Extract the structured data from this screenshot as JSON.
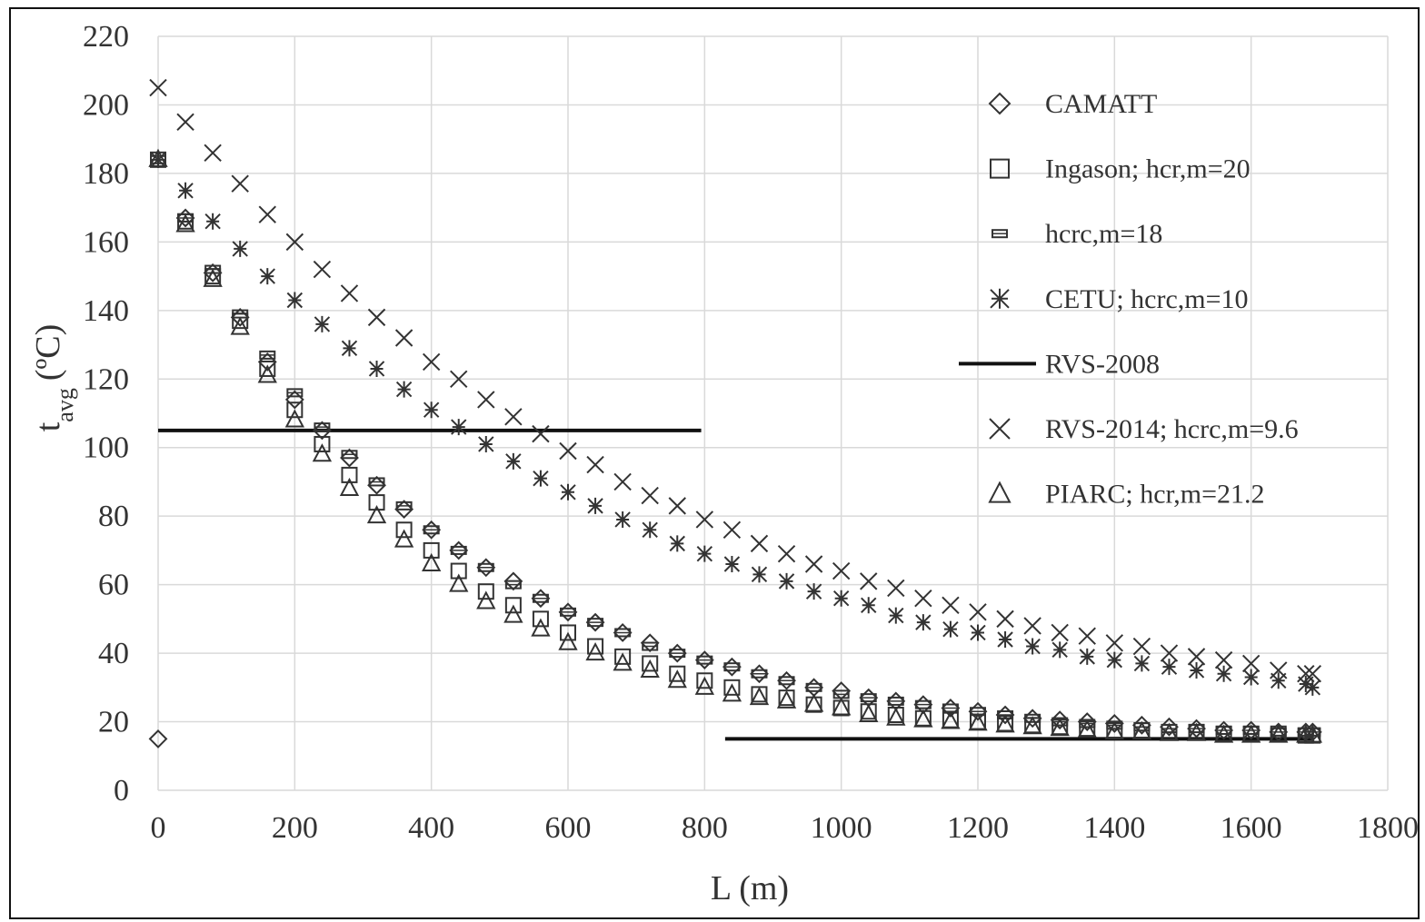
{
  "chart_data": {
    "type": "scatter",
    "xlabel": "L (m)",
    "ylabel_main": "t",
    "ylabel_sub": "avg",
    "ylabel_unit": "(ºC)",
    "xlim": [
      0,
      1800
    ],
    "ylim": [
      0,
      220
    ],
    "xticks": [
      "0",
      "200",
      "400",
      "600",
      "800",
      "1000",
      "1200",
      "1400",
      "1600",
      "1800"
    ],
    "yticks": [
      "0",
      "20",
      "40",
      "60",
      "80",
      "100",
      "120",
      "140",
      "160",
      "180",
      "200",
      "220"
    ],
    "grid": true,
    "legend_position": "right",
    "series": [
      {
        "name": "CAMATT",
        "marker": "diamond",
        "x": [
          0,
          40,
          80,
          120,
          160,
          200,
          240,
          280,
          320,
          360,
          400,
          440,
          480,
          520,
          560,
          600,
          640,
          680,
          720,
          760,
          800,
          840,
          880,
          920,
          960,
          1000,
          1040,
          1080,
          1120,
          1160,
          1200,
          1240,
          1280,
          1320,
          1360,
          1400,
          1440,
          1480,
          1520,
          1560,
          1600,
          1640,
          1680,
          1690
        ],
        "y": [
          15,
          167,
          151,
          138,
          125,
          114,
          105,
          97,
          89,
          82,
          76,
          70,
          65,
          61,
          56,
          52,
          49,
          46,
          43,
          40,
          38,
          36,
          34,
          32,
          30,
          29,
          27,
          26,
          25,
          24,
          23,
          22,
          21,
          20.5,
          20,
          19.5,
          19,
          18.5,
          18,
          17.5,
          17.5,
          17,
          17,
          17
        ]
      },
      {
        "name": "Ingason; hcr,m=20",
        "marker": "square",
        "x": [
          0,
          40,
          80,
          120,
          160,
          200,
          240,
          280,
          320,
          360,
          400,
          440,
          480,
          520,
          560,
          600,
          640,
          680,
          720,
          760,
          800,
          840,
          880,
          920,
          960,
          1000,
          1040,
          1080,
          1120,
          1160,
          1200,
          1240,
          1280,
          1320,
          1360,
          1400,
          1440,
          1480,
          1520,
          1560,
          1600,
          1640,
          1680,
          1690
        ],
        "y": [
          184,
          166,
          150,
          137,
          123,
          111,
          101,
          92,
          84,
          76,
          70,
          64,
          58,
          54,
          50,
          46,
          42,
          39,
          37,
          34,
          32,
          30,
          28,
          27,
          25,
          24,
          23,
          22,
          21,
          20.5,
          20,
          19.5,
          19,
          18.5,
          18,
          17.5,
          17.5,
          17,
          17,
          16.5,
          16.5,
          16.5,
          16,
          16
        ]
      },
      {
        "name": "hcrc,m=18",
        "marker": "barred-rect",
        "x": [
          0,
          40,
          80,
          120,
          160,
          200,
          240,
          280,
          320,
          360,
          400,
          440,
          480,
          520,
          560,
          600,
          640,
          680,
          720,
          760,
          800,
          840,
          880,
          920,
          960,
          1000,
          1040,
          1080,
          1120,
          1160,
          1200,
          1240,
          1280,
          1320,
          1360,
          1400,
          1440,
          1480,
          1520,
          1560,
          1600,
          1640,
          1680,
          1690
        ],
        "y": [
          184,
          167,
          152,
          139,
          127,
          116,
          106,
          98,
          90,
          83,
          76,
          70,
          65,
          60,
          56,
          52,
          49,
          46,
          42,
          40,
          38,
          36,
          34,
          32,
          30,
          28,
          27,
          26,
          25,
          24,
          23,
          22,
          21,
          20,
          19.5,
          19,
          18.5,
          18,
          18,
          17.5,
          17.5,
          17,
          17,
          17
        ]
      },
      {
        "name": "CETU; hcrc,m=10",
        "marker": "asterisk",
        "x": [
          0,
          40,
          80,
          120,
          160,
          200,
          240,
          280,
          320,
          360,
          400,
          440,
          480,
          520,
          560,
          600,
          640,
          680,
          720,
          760,
          800,
          840,
          880,
          920,
          960,
          1000,
          1040,
          1080,
          1120,
          1160,
          1200,
          1240,
          1280,
          1320,
          1360,
          1400,
          1440,
          1480,
          1520,
          1560,
          1600,
          1640,
          1680,
          1690
        ],
        "y": [
          184,
          175,
          166,
          158,
          150,
          143,
          136,
          129,
          123,
          117,
          111,
          106,
          101,
          96,
          91,
          87,
          83,
          79,
          76,
          72,
          69,
          66,
          63,
          61,
          58,
          56,
          54,
          51,
          49,
          47,
          46,
          44,
          42,
          41,
          39,
          38,
          37,
          36,
          35,
          34,
          33,
          32,
          31,
          30
        ]
      },
      {
        "name": "RVS-2014; hcrc,m=9.6",
        "marker": "x",
        "x": [
          0,
          40,
          80,
          120,
          160,
          200,
          240,
          280,
          320,
          360,
          400,
          440,
          480,
          520,
          560,
          600,
          640,
          680,
          720,
          760,
          800,
          840,
          880,
          920,
          960,
          1000,
          1040,
          1080,
          1120,
          1160,
          1200,
          1240,
          1280,
          1320,
          1360,
          1400,
          1440,
          1480,
          1520,
          1560,
          1600,
          1640,
          1680,
          1690
        ],
        "y": [
          205,
          195,
          186,
          177,
          168,
          160,
          152,
          145,
          138,
          132,
          125,
          120,
          114,
          109,
          104,
          99,
          95,
          90,
          86,
          83,
          79,
          76,
          72,
          69,
          66,
          64,
          61,
          59,
          56,
          54,
          52,
          50,
          48,
          46,
          45,
          43,
          42,
          40,
          39,
          38,
          37,
          35,
          34,
          34
        ]
      },
      {
        "name": "PIARC; hcr,m=21.2",
        "marker": "triangle",
        "x": [
          0,
          40,
          80,
          120,
          160,
          200,
          240,
          280,
          320,
          360,
          400,
          440,
          480,
          520,
          560,
          600,
          640,
          680,
          720,
          760,
          800,
          840,
          880,
          920,
          960,
          1000,
          1040,
          1080,
          1120,
          1160,
          1200,
          1240,
          1280,
          1320,
          1360,
          1400,
          1440,
          1480,
          1520,
          1560,
          1600,
          1640,
          1680,
          1690
        ],
        "y": [
          184,
          165,
          149,
          135,
          121,
          108,
          98,
          88,
          80,
          73,
          66,
          60,
          55,
          51,
          47,
          43,
          40,
          37,
          35,
          32,
          30,
          28,
          27,
          26,
          25,
          24,
          22,
          21,
          20.5,
          20,
          19.5,
          19,
          18.5,
          18,
          17.5,
          17,
          17,
          16.5,
          16.5,
          16,
          16,
          16,
          16,
          16
        ]
      },
      {
        "name": "RVS-2008",
        "marker": "line",
        "segments": [
          {
            "x": [
              0,
              795
            ],
            "y": [
              105,
              105
            ]
          },
          {
            "x": [
              830,
              1690
            ],
            "y": [
              15,
              15
            ]
          }
        ]
      }
    ]
  },
  "legend": [
    {
      "label": "CAMATT",
      "marker": "diamond"
    },
    {
      "label": "Ingason; hcr,m=20",
      "marker": "square"
    },
    {
      "label": "hcrc,m=18",
      "marker": "barred-rect"
    },
    {
      "label": "CETU; hcrc,m=10",
      "marker": "asterisk"
    },
    {
      "label": "RVS-2008",
      "marker": "line"
    },
    {
      "label": "RVS-2014; hcrc,m=9.6",
      "marker": "x"
    },
    {
      "label": "PIARC; hcr,m=21.2",
      "marker": "triangle"
    }
  ]
}
